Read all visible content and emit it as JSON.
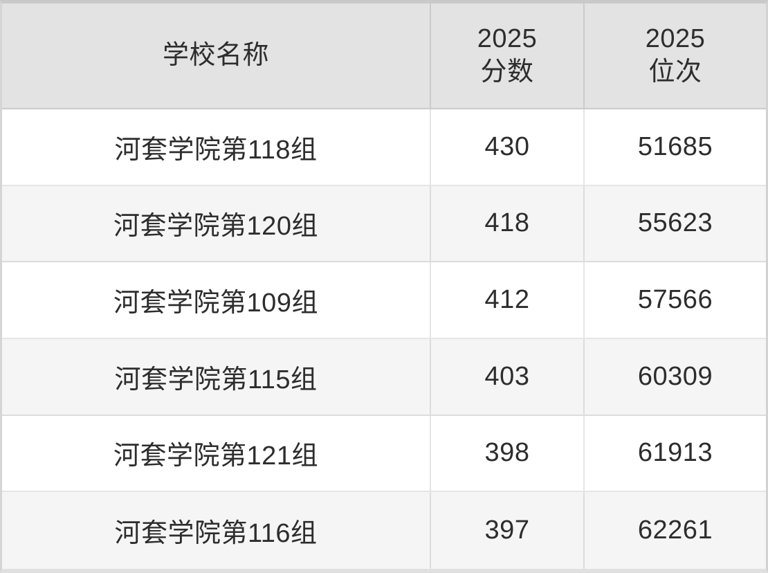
{
  "colors": {
    "header_bg": "#e3e3e3",
    "row_bg": "#ffffff",
    "row_alt_bg": "#f5f5f5",
    "border": "#d9d9d9",
    "outer_border_top": "#c9c9c9",
    "text": "#2d2d2d"
  },
  "table": {
    "header": {
      "school_label": "学校名称",
      "score_line1": "2025",
      "score_line2": "分数",
      "rank_line1": "2025",
      "rank_line2": "位次"
    },
    "rows": [
      {
        "school": "河套学院第118组",
        "score": "430",
        "rank": "51685"
      },
      {
        "school": "河套学院第120组",
        "score": "418",
        "rank": "55623"
      },
      {
        "school": "河套学院第109组",
        "score": "412",
        "rank": "57566"
      },
      {
        "school": "河套学院第115组",
        "score": "403",
        "rank": "60309"
      },
      {
        "school": "河套学院第121组",
        "score": "398",
        "rank": "61913"
      },
      {
        "school": "河套学院第116组",
        "score": "397",
        "rank": "62261"
      }
    ]
  },
  "chart_data": {
    "type": "table",
    "title": "",
    "columns": [
      "学校名称",
      "2025分数",
      "2025位次"
    ],
    "rows": [
      [
        "河套学院第118组",
        430,
        51685
      ],
      [
        "河套学院第120组",
        418,
        55623
      ],
      [
        "河套学院第109组",
        412,
        57566
      ],
      [
        "河套学院第115组",
        403,
        60309
      ],
      [
        "河套学院第121组",
        398,
        61913
      ],
      [
        "河套学院第116组",
        397,
        62261
      ]
    ]
  }
}
